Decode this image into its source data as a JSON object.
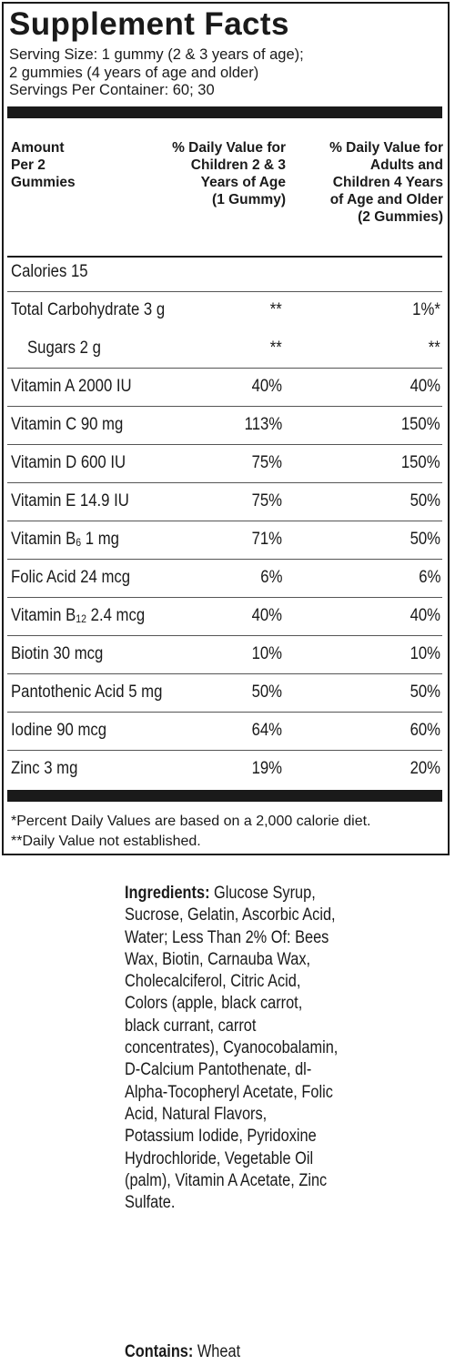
{
  "panel": {
    "title": "Supplement Facts",
    "serving_line1": "Serving Size:  1 gummy (2 & 3 years of age);",
    "serving_line2": "2 gummies (4 years of age and older)",
    "servings_per_container": "Servings Per Container:  60; 30",
    "header_amount": [
      "Amount",
      "Per 2",
      "Gummies"
    ],
    "header_children": [
      "% Daily Value for",
      "Children 2 & 3",
      "Years of Age",
      "(1 Gummy)"
    ],
    "header_adults": [
      "% Daily Value for",
      "Adults and",
      "Children 4 Years",
      "of Age and Older",
      "(2 Gummies)"
    ]
  },
  "rows": [
    {
      "name": "Calories 15",
      "child": "",
      "adult": ""
    },
    {
      "name": "Total Carbohydrate 3 g",
      "child": "**",
      "adult": "1%*"
    },
    {
      "name": "Sugars 2 g",
      "child": "**",
      "adult": "**"
    },
    {
      "name": "Vitamin A 2000 IU",
      "child": "40%",
      "adult": "40%"
    },
    {
      "name": "Vitamin C 90 mg",
      "child": "113%",
      "adult": "150%"
    },
    {
      "name": "Vitamin D 600 IU",
      "child": "75%",
      "adult": "150%"
    },
    {
      "name": "Vitamin E 14.9 IU",
      "child": "75%",
      "adult": "50%"
    },
    {
      "name_prefix": "Vitamin B",
      "name_sub": "6",
      "name_suffix": " 1 mg",
      "child": "71%",
      "adult": "50%"
    },
    {
      "name": "Folic Acid 24 mcg",
      "child": "6%",
      "adult": "6%"
    },
    {
      "name_prefix": "Vitamin B",
      "name_sub": "12",
      "name_suffix": " 2.4 mcg",
      "child": "40%",
      "adult": "40%"
    },
    {
      "name": "Biotin 30 mcg",
      "child": "10%",
      "adult": "10%"
    },
    {
      "name": "Pantothenic Acid 5 mg",
      "child": "50%",
      "adult": "50%"
    },
    {
      "name": "Iodine 90 mcg",
      "child": "64%",
      "adult": "60%"
    },
    {
      "name": "Zinc 3 mg",
      "child": "19%",
      "adult": "20%"
    }
  ],
  "footnotes": [
    "*Percent Daily Values are based on a 2,000 calorie diet.",
    "**Daily Value not established."
  ],
  "ingredients": {
    "label": "Ingredients:",
    "text": " Glucose Syrup, Sucrose, Gelatin, Ascorbic Acid, Water; Less Than 2% Of: Bees Wax, Biotin, Carnauba Wax, Cholecalciferol, Citric Acid, Colors (apple, black carrot, black currant, carrot concentrates), Cyanocobalamin, D-Calcium Pantothenate, dl-Alpha-Tocopheryl Acetate, Folic Acid, Natural Flavors, Potassium Iodide, Pyridoxine Hydrochloride, Vegetable Oil (palm), Vitamin A Acetate, Zinc Sulfate."
  },
  "contains": {
    "label": "Contains:",
    "text": " Wheat"
  }
}
